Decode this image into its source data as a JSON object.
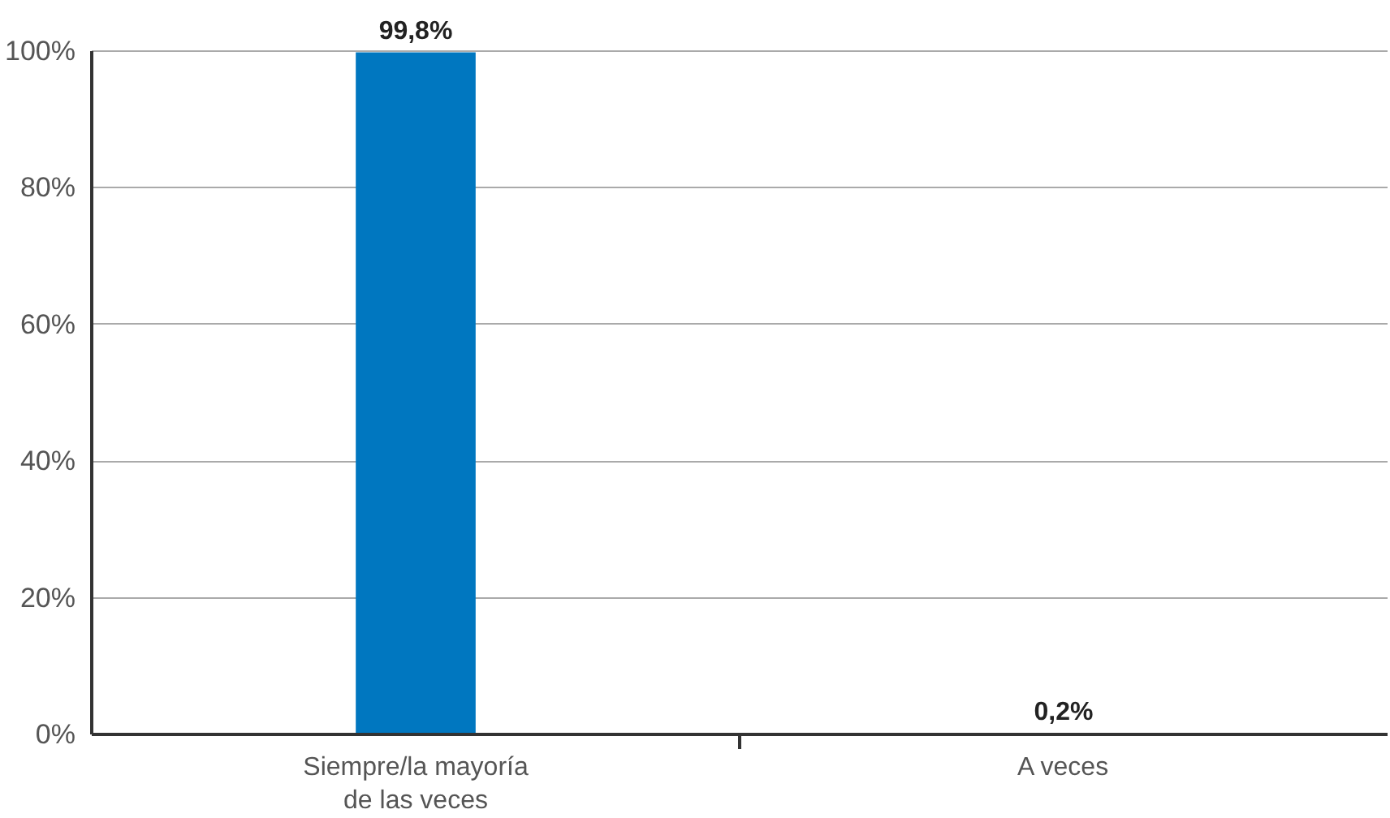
{
  "chart_data": {
    "type": "bar",
    "categories": [
      "Siempre/la mayoría de las veces",
      "A veces"
    ],
    "values": [
      99.8,
      0.2
    ],
    "color": "#0077c0",
    "value_labels": [
      "99,8%",
      "0,2%"
    ],
    "ylim": [
      0,
      100
    ],
    "yticks": [
      {
        "value": 0,
        "label": "0%"
      },
      {
        "value": 20,
        "label": "20%"
      },
      {
        "value": 40,
        "label": "40%"
      },
      {
        "value": 60,
        "label": "60%"
      },
      {
        "value": 80,
        "label": "80%"
      },
      {
        "value": 100,
        "label": "100%"
      }
    ],
    "grid": "y"
  }
}
